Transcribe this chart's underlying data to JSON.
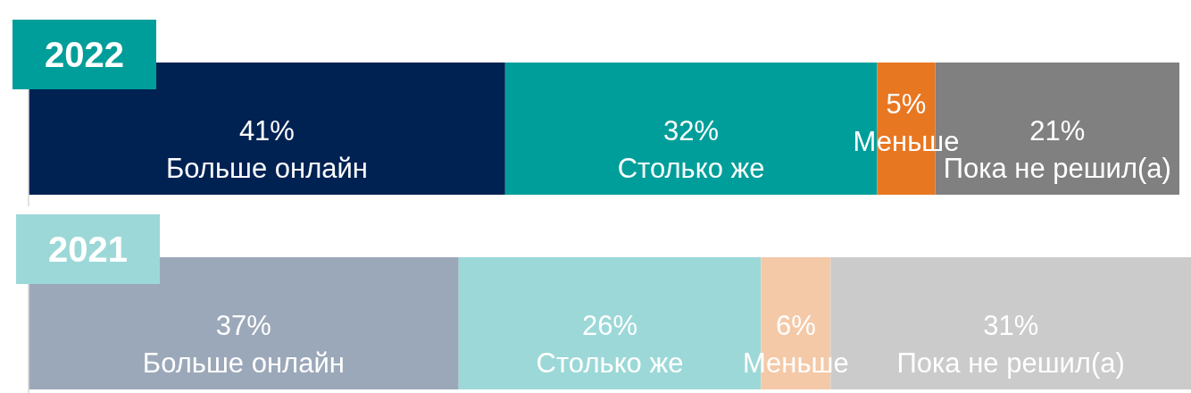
{
  "chart_data": {
    "type": "bar",
    "orientation": "horizontal",
    "stacked": true,
    "categories": [
      "2022",
      "2021"
    ],
    "series": [
      {
        "name": "Больше онлайн",
        "values": [
          41,
          37
        ],
        "colors": [
          "#002253",
          "#9ba8b9"
        ],
        "value_labels": [
          "41%",
          "37%"
        ]
      },
      {
        "name": "Столько же",
        "values": [
          32,
          26
        ],
        "colors": [
          "#009e9a",
          "#9dd8d8"
        ],
        "value_labels": [
          "32%",
          "26%"
        ]
      },
      {
        "name": "Меньше",
        "values": [
          5,
          6
        ],
        "colors": [
          "#e87722",
          "#f4c9a8"
        ],
        "value_labels": [
          "5%",
          "6%"
        ]
      },
      {
        "name": "Пока не решил(а)",
        "values": [
          21,
          31
        ],
        "colors": [
          "#808080",
          "#cbcbcb"
        ],
        "value_labels": [
          "21%",
          "31%"
        ]
      }
    ]
  }
}
